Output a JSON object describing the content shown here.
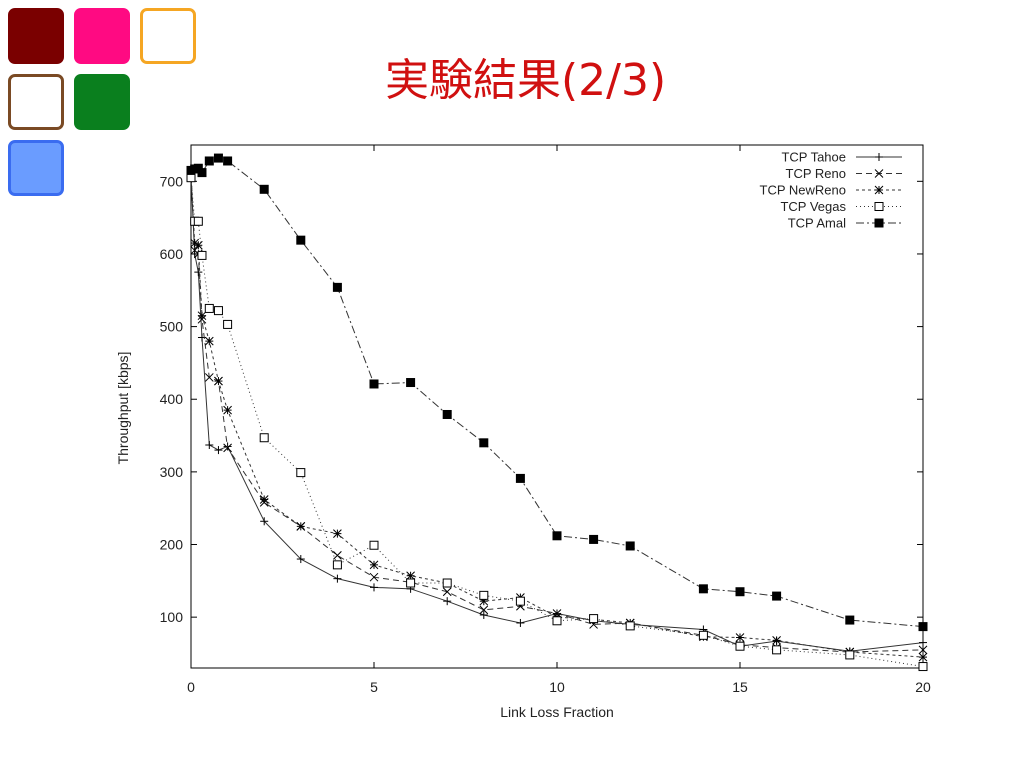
{
  "slide": {
    "title": "実験結果(2/3)",
    "tiles": [
      {
        "name": "tile-dark-red",
        "fill": "#7a0000",
        "border": "#7a0000"
      },
      {
        "name": "tile-pink",
        "fill": "#ff0a82",
        "border": "#ff0a82"
      },
      {
        "name": "tile-orange-outline",
        "fill": "#ffffff",
        "border": "#f5a623"
      },
      {
        "name": "tile-brown-outline",
        "fill": "#ffffff",
        "border": "#7a4a24"
      },
      {
        "name": "tile-green",
        "fill": "#0a7f1e",
        "border": "#0a7f1e"
      },
      {
        "name": "tile-blue",
        "fill": "#6a9cff",
        "border": "#3a6cf0"
      }
    ]
  },
  "chart_data": {
    "type": "line",
    "title": "",
    "xlabel": "Link Loss Fraction",
    "ylabel": "Throughput [kbps]",
    "xlim": [
      0,
      20
    ],
    "ylim": [
      30,
      750
    ],
    "xticks": [
      0,
      5,
      10,
      15,
      20
    ],
    "yticks": [
      100,
      200,
      300,
      400,
      500,
      600,
      700
    ],
    "grid": false,
    "legend": "top-right",
    "series": [
      {
        "name": "TCP Tahoe",
        "marker": "plus",
        "dash": "",
        "x": [
          0,
          0.1,
          0.2,
          0.3,
          0.5,
          0.75,
          1,
          2,
          3,
          4,
          5,
          6,
          7,
          8,
          9,
          10,
          11,
          12,
          14,
          15,
          16,
          18,
          20
        ],
        "y": [
          708,
          600,
          575,
          485,
          337,
          330,
          335,
          232,
          180,
          153,
          141,
          139,
          122,
          103,
          92,
          105,
          95,
          90,
          83,
          60,
          67,
          53,
          65
        ]
      },
      {
        "name": "TCP Reno",
        "marker": "x",
        "dash": "6,4",
        "x": [
          0,
          0.1,
          0.2,
          0.3,
          0.5,
          0.75,
          1,
          2,
          3,
          4,
          5,
          6,
          7,
          8,
          9,
          10,
          11,
          12,
          14,
          15,
          16,
          18,
          20
        ],
        "y": [
          709,
          605,
          600,
          510,
          430,
          425,
          333,
          258,
          225,
          185,
          155,
          148,
          135,
          110,
          115,
          105,
          90,
          92,
          75,
          62,
          58,
          52,
          55
        ]
      },
      {
        "name": "TCP NewReno",
        "marker": "star",
        "dash": "3,3",
        "x": [
          0,
          0.1,
          0.2,
          0.3,
          0.5,
          0.75,
          1,
          2,
          3,
          4,
          5,
          6,
          7,
          8,
          9,
          10,
          11,
          12,
          14,
          15,
          16,
          18,
          20
        ],
        "y": [
          710,
          615,
          612,
          515,
          480,
          425,
          385,
          262,
          225,
          215,
          172,
          157,
          147,
          122,
          127,
          100,
          97,
          92,
          73,
          72,
          68,
          52,
          45
        ]
      },
      {
        "name": "TCP Vegas",
        "marker": "open-square",
        "dash": "1,3",
        "x": [
          0,
          0.1,
          0.2,
          0.3,
          0.5,
          0.75,
          1,
          2,
          3,
          4,
          5,
          6,
          7,
          8,
          9,
          10,
          11,
          12,
          14,
          15,
          16,
          18,
          20
        ],
        "y": [
          705,
          645,
          645,
          598,
          525,
          522,
          503,
          347,
          299,
          172,
          199,
          147,
          147,
          130,
          122,
          95,
          98,
          88,
          75,
          60,
          55,
          48,
          32
        ]
      },
      {
        "name": "TCP Amal",
        "marker": "filled-square",
        "dash": "8,3,2,3",
        "x": [
          0,
          0.1,
          0.2,
          0.3,
          0.5,
          0.75,
          1,
          2,
          3,
          4,
          5,
          6,
          7,
          8,
          9,
          10,
          11,
          12,
          14,
          15,
          16,
          18,
          20
        ],
        "y": [
          715,
          717,
          718,
          712,
          728,
          732,
          728,
          689,
          619,
          554,
          421,
          423,
          379,
          340,
          291,
          212,
          207,
          198,
          139,
          135,
          129,
          96,
          87
        ]
      }
    ]
  }
}
